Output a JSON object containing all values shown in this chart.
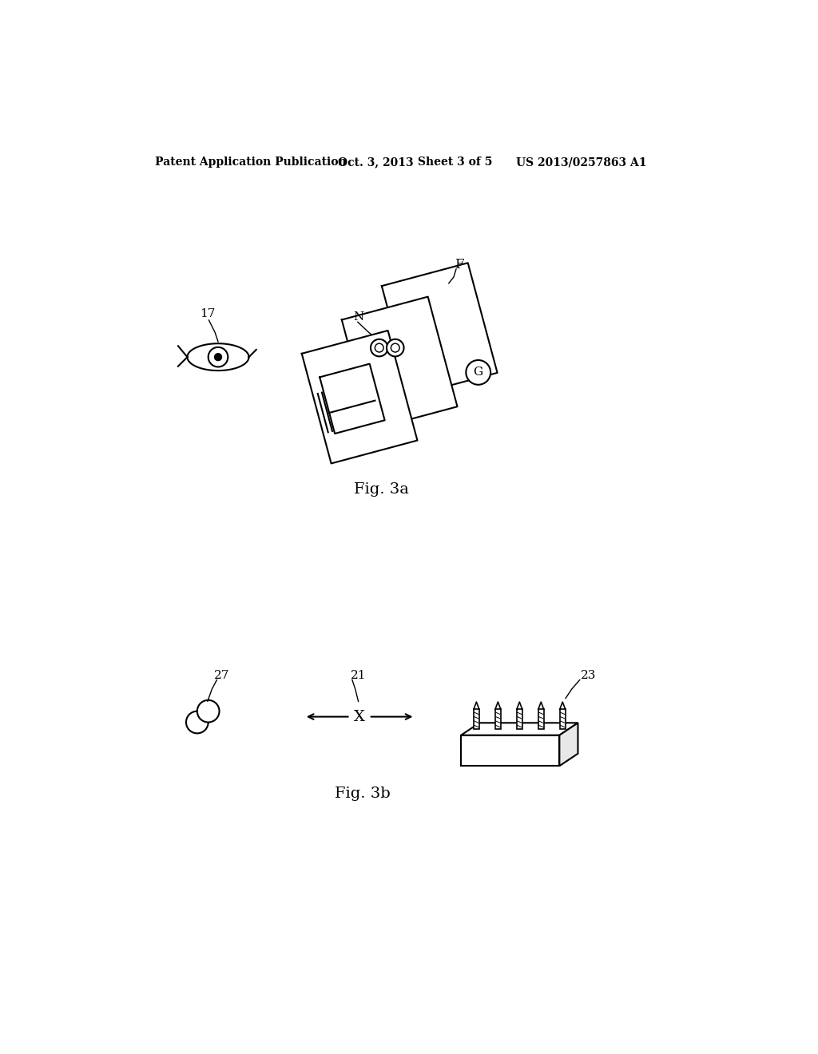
{
  "bg_color": "#ffffff",
  "header_text": "Patent Application Publication",
  "header_date": "Oct. 3, 2013",
  "header_sheet": "Sheet 3 of 5",
  "header_patent": "US 2013/0257863 A1",
  "fig3a_label": "Fig. 3a",
  "fig3b_label": "Fig. 3b",
  "label_17": "17",
  "label_N": "N",
  "label_F": "F",
  "label_G": "G",
  "label_27": "27",
  "label_21": "21",
  "label_X": "X",
  "label_23": "23",
  "lw": 1.5,
  "font_size_header": 10,
  "font_size_label": 11,
  "font_size_fig": 14
}
